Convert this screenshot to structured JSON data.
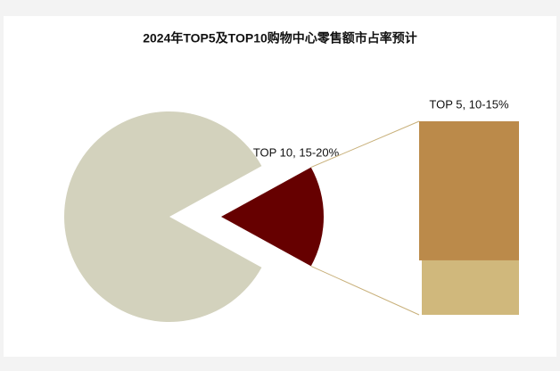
{
  "chart_data": {
    "type": "pie",
    "title": "2024年TOP5及TOP10购物中心零售额市占率预计",
    "categories": [
      null,
      "TOP 10, 15-20%"
    ],
    "values": [
      84,
      16
    ],
    "colors": [
      "#d3d2bd",
      "#660000"
    ],
    "bar": {
      "categories": [
        "TOP 5, 10-15%",
        null
      ],
      "values": [
        11.5,
        4.5
      ],
      "colors": [
        "#bb8a4a",
        "#d0b87c"
      ]
    }
  }
}
